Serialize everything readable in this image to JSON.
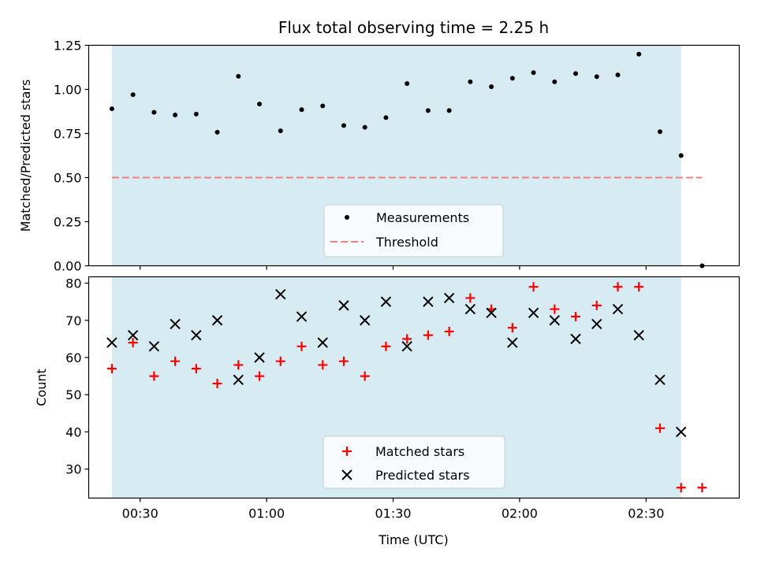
{
  "chart_data": {
    "type": "scatter",
    "title": "Flux total observing time = 2.25 h",
    "xlabel": "Time (UTC)",
    "x_tick_labels": [
      "00:30",
      "01:00",
      "01:30",
      "02:00",
      "02:30"
    ],
    "x_tick_minutes": [
      30,
      60,
      90,
      120,
      150
    ],
    "xlim_minutes": [
      17.8,
      172.1
    ],
    "shaded_span_minutes": [
      23.3,
      158.3
    ],
    "x_minutes": [
      23.3,
      28.3,
      33.3,
      38.3,
      43.3,
      48.3,
      53.3,
      58.3,
      63.3,
      68.3,
      73.3,
      78.3,
      83.3,
      88.3,
      93.3,
      98.3,
      103.3,
      108.3,
      113.3,
      118.3,
      123.3,
      128.3,
      133.3,
      138.3,
      143.3,
      148.3,
      153.3,
      158.3,
      163.3
    ],
    "panels": [
      {
        "ylabel": "Matched/Predicted stars",
        "ylim": [
          0,
          1.25
        ],
        "y_ticks": [
          "0.00",
          "0.25",
          "0.50",
          "0.75",
          "1.00",
          "1.25"
        ],
        "y_tick_values": [
          0,
          0.25,
          0.5,
          0.75,
          1.0,
          1.25
        ],
        "series": [
          {
            "name": "Measurements",
            "marker": "dot",
            "color": "#000000",
            "values": [
              0.89,
              0.97,
              0.87,
              0.855,
              0.86,
              0.757,
              1.074,
              0.917,
              0.765,
              0.885,
              0.906,
              0.795,
              0.785,
              0.84,
              1.033,
              0.88,
              0.88,
              1.043,
              1.015,
              1.063,
              1.095,
              1.043,
              1.09,
              1.072,
              1.082,
              1.2,
              0.76,
              0.625,
              0.0
            ]
          }
        ],
        "threshold": {
          "name": "Threshold",
          "value": 0.5,
          "color": "#f08080",
          "x_range_minutes": [
            23.3,
            163.3
          ]
        },
        "legend": {
          "position": "lower-center",
          "entries": [
            "Measurements",
            "Threshold"
          ]
        }
      },
      {
        "ylabel": "Count",
        "ylim": [
          22.2,
          81.7
        ],
        "y_ticks": [
          "30",
          "40",
          "50",
          "60",
          "70",
          "80"
        ],
        "y_tick_values": [
          30,
          40,
          50,
          60,
          70,
          80
        ],
        "series": [
          {
            "name": "Matched stars",
            "marker": "plus",
            "color": "#ff0000",
            "values": [
              57,
              64,
              55,
              59,
              57,
              53,
              58,
              55,
              59,
              63,
              58,
              59,
              55,
              63,
              65,
              66,
              67,
              76,
              73,
              68,
              79,
              73,
              71,
              74,
              79,
              79,
              41,
              25,
              25
            ]
          },
          {
            "name": "Predicted stars",
            "marker": "x",
            "color": "#000000",
            "values": [
              64,
              66,
              63,
              69,
              66,
              70,
              54,
              60,
              77,
              71,
              64,
              74,
              70,
              75,
              63,
              75,
              76,
              73,
              72,
              64,
              72,
              70,
              65,
              69,
              73,
              66,
              54,
              40,
              null
            ]
          }
        ],
        "legend": {
          "position": "lower-center",
          "entries": [
            "Matched stars",
            "Predicted stars"
          ]
        }
      }
    ],
    "colors": {
      "shade": "#add8e6",
      "shade_opacity": 0.5
    }
  }
}
